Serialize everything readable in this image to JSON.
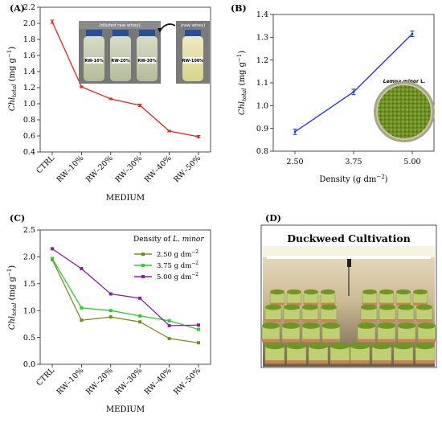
{
  "panels": {
    "a": "(A)",
    "b": "(B)",
    "c": "(C)",
    "d": "(D)"
  },
  "chart_data": [
    {
      "type": "line",
      "panel": "(A)",
      "categories": [
        "CTRL",
        "RW–10%",
        "RW–20%",
        "RW–30%",
        "RW–40%",
        "RW–50%"
      ],
      "values": [
        2.02,
        1.21,
        1.06,
        0.98,
        0.66,
        0.59
      ],
      "errors": [
        0.02,
        0.01,
        0.01,
        0.015,
        0.01,
        0.015
      ],
      "ylim": [
        0.4,
        2.2
      ],
      "yticks": [
        "0.4",
        "0.6",
        "0.8",
        "1.0",
        "1.2",
        "1.4",
        "1.6",
        "1.8",
        "2.0",
        "2.2"
      ],
      "xlabel": "MEDIUM",
      "ylabel_main": "Chl",
      "ylabel_sub": "total",
      "ylabel_unit": "(mg g",
      "ylabel_exp": "−1",
      "ylabel_close": ")",
      "color": "#e8231c",
      "inset": {
        "caption_left": "(diluted raw whey)",
        "caption_right": "(raw whey)",
        "bottles": [
          "RW-10%",
          "RW-20%",
          "RW-30%",
          "RW-100%"
        ]
      }
    },
    {
      "type": "line",
      "panel": "(B)",
      "x": [
        "2.50",
        "3.75",
        "5.00"
      ],
      "values": [
        0.885,
        1.06,
        1.315
      ],
      "errors": [
        0.012,
        0.012,
        0.012
      ],
      "ylim": [
        0.8,
        1.4
      ],
      "yticks": [
        "0.8",
        "0.9",
        "1.0",
        "1.1",
        "1.2",
        "1.3",
        "1.4"
      ],
      "xlabel": "Density (g dm",
      "xlabel_exp": "−2",
      "xlabel_close": ")",
      "ylabel_main": "Chl",
      "ylabel_sub": "total",
      "ylabel_unit": "(mg g",
      "ylabel_exp": "−1",
      "ylabel_close": ")",
      "color": "#1c2ee8",
      "inset": {
        "caption_italic": "Lemna minor",
        "caption_rest": " L."
      }
    },
    {
      "type": "line",
      "panel": "(C)",
      "categories": [
        "CTRL",
        "RW–10%",
        "RW–20%",
        "RW–30%",
        "RW–40%",
        "RW–50%"
      ],
      "ylim": [
        0.0,
        2.5
      ],
      "yticks": [
        "0.0",
        "0.5",
        "1.0",
        "1.5",
        "2.0",
        "2.5"
      ],
      "xlabel": "MEDIUM",
      "ylabel_main": "Chl",
      "ylabel_sub": "total",
      "ylabel_unit": "(mg g",
      "ylabel_exp": "−1",
      "ylabel_close": ")",
      "legend": {
        "title_pre": "Density of ",
        "title_italic": "L. minor",
        "placement": "top-right"
      },
      "series": [
        {
          "name": "2.50 g dm",
          "name_exp": "−2",
          "color": "#7f8a1c",
          "values": [
            1.95,
            0.82,
            0.88,
            0.79,
            0.48,
            0.4
          ]
        },
        {
          "name": "3.75 g dm",
          "name_exp": "−2",
          "color": "#27d327",
          "values": [
            1.97,
            1.05,
            1.0,
            0.9,
            0.81,
            0.65
          ]
        },
        {
          "name": "5.00 g dm",
          "name_exp": "−2",
          "color": "#8a1ca8",
          "values": [
            2.15,
            1.78,
            1.31,
            1.23,
            0.72,
            0.73
          ]
        }
      ]
    }
  ],
  "photo_d": {
    "title": "Duckweed Cultivation"
  }
}
